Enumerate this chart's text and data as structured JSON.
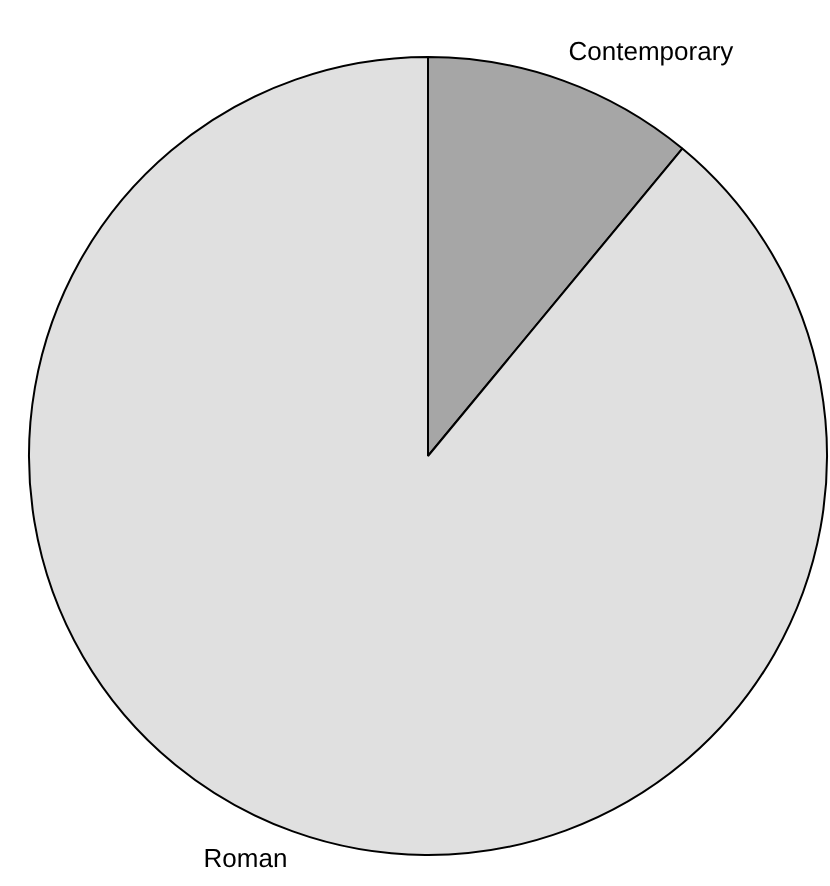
{
  "chart_data": {
    "type": "pie",
    "categories": [
      "Contemporary",
      "Roman"
    ],
    "values": [
      11,
      89
    ],
    "colors": [
      "#a6a6a6",
      "#e0e0e0"
    ],
    "legend": false
  }
}
